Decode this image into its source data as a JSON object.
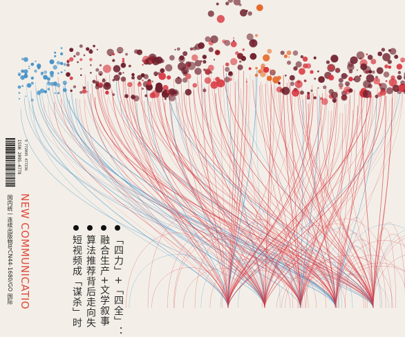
{
  "cover": {
    "issn": "ISSN 2095-4778",
    "barcode_number": "9 772095 477236",
    "publication_info": "国内统一连续出版物号CN44-1680/GO  国际",
    "masthead": "NEW COMMUNICATIO"
  },
  "cover_lines": [
    "「四力」+「四全」：",
    "融合生产+文学叙事",
    "算法推荐背后走向失",
    "短视频成「谋杀」时"
  ],
  "colors": {
    "background": "#f3efe8",
    "masthead": "#e0483a",
    "lines_red": "#d8353f",
    "lines_blue": "#3f8fc8",
    "dots_dark": "#6e1f2c",
    "dots_orange": "#e66a2c"
  }
}
